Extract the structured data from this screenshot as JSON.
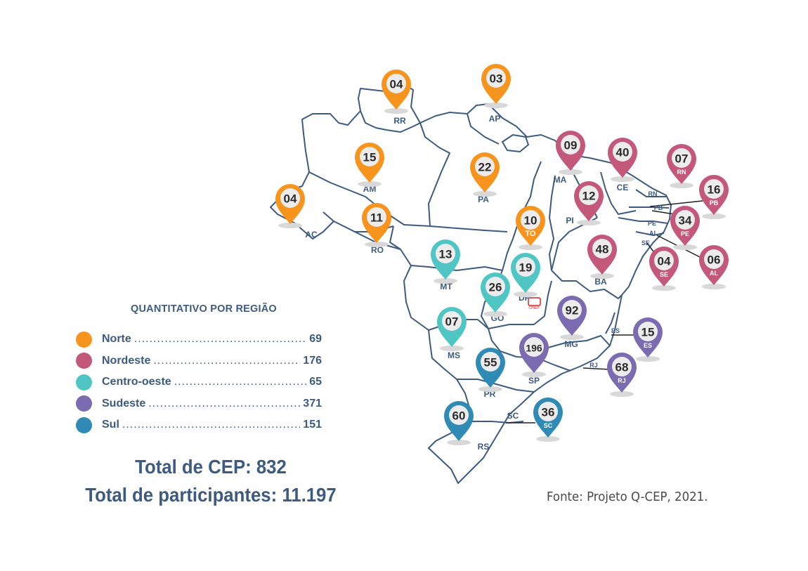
{
  "legend": {
    "title": "QUANTITATIVO POR REGIÃO",
    "items": [
      {
        "label": "Norte",
        "value": "69",
        "color": "#f7941d"
      },
      {
        "label": "Nordeste",
        "value": "176",
        "color": "#c4587a"
      },
      {
        "label": "Centro-oeste",
        "value": "65",
        "color": "#4fc6c4"
      },
      {
        "label": "Sudeste",
        "value": "371",
        "color": "#7b6bb0"
      },
      {
        "label": "Sul",
        "value": "151",
        "color": "#2f8bb6"
      }
    ]
  },
  "totals": {
    "cep": "Total de CEP: 832",
    "participants": "Total de participantes: 11.197"
  },
  "source": "Fonte: Projeto Q-CEP, 2021.",
  "colors": {
    "border": "#3d5a80",
    "norte": "#f7941d",
    "nordeste": "#c4587a",
    "centro_oeste": "#4fc6c4",
    "sudeste": "#7b6bb0",
    "sul": "#2f8bb6",
    "df_marker": "#d7262b"
  },
  "map": {
    "df_badge": "CINEP",
    "states": [
      {
        "uf": "RR",
        "count": "04",
        "region": "norte"
      },
      {
        "uf": "AP",
        "count": "03",
        "region": "norte"
      },
      {
        "uf": "AM",
        "count": "15",
        "region": "norte"
      },
      {
        "uf": "PA",
        "count": "22",
        "region": "norte"
      },
      {
        "uf": "AC",
        "count": "04",
        "region": "norte"
      },
      {
        "uf": "RO",
        "count": "11",
        "region": "norte"
      },
      {
        "uf": "TO",
        "count": "10",
        "region": "norte"
      },
      {
        "uf": "MA",
        "count": "09",
        "region": "nordeste"
      },
      {
        "uf": "CE",
        "count": "40",
        "region": "nordeste"
      },
      {
        "uf": "RN",
        "count": "07",
        "region": "nordeste"
      },
      {
        "uf": "PB",
        "count": "16",
        "region": "nordeste"
      },
      {
        "uf": "PI",
        "count": "12",
        "region": "nordeste"
      },
      {
        "uf": "PE",
        "count": "34",
        "region": "nordeste"
      },
      {
        "uf": "BA",
        "count": "48",
        "region": "nordeste"
      },
      {
        "uf": "SE",
        "count": "04",
        "region": "nordeste"
      },
      {
        "uf": "AL",
        "count": "06",
        "region": "nordeste"
      },
      {
        "uf": "MT",
        "count": "13",
        "region": "centro_oeste"
      },
      {
        "uf": "DF",
        "count": "19",
        "region": "centro_oeste"
      },
      {
        "uf": "GO",
        "count": "26",
        "region": "centro_oeste"
      },
      {
        "uf": "MS",
        "count": "07",
        "region": "centro_oeste"
      },
      {
        "uf": "MG",
        "count": "92",
        "region": "sudeste"
      },
      {
        "uf": "ES",
        "count": "15",
        "region": "sudeste"
      },
      {
        "uf": "SP",
        "count": "196",
        "region": "sudeste"
      },
      {
        "uf": "RJ",
        "count": "68",
        "region": "sudeste"
      },
      {
        "uf": "PR",
        "count": "55",
        "region": "sul"
      },
      {
        "uf": "SC",
        "count": "36",
        "region": "sul"
      },
      {
        "uf": "RS",
        "count": "60",
        "region": "sul"
      }
    ]
  }
}
